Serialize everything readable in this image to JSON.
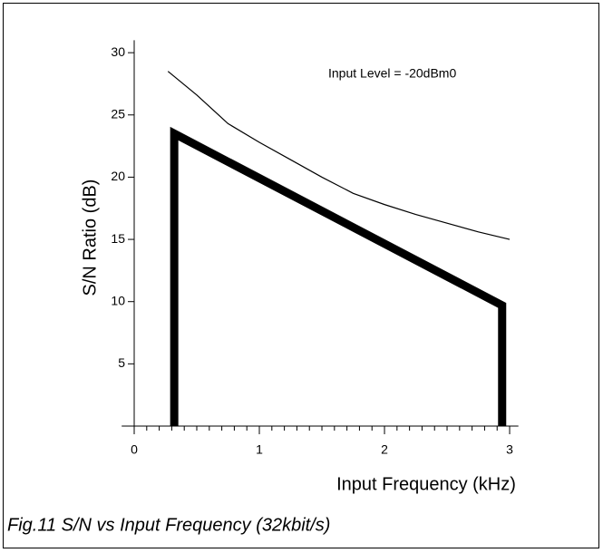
{
  "chart_data": {
    "type": "line",
    "xlabel": "Input Frequency (kHz)",
    "ylabel": "S/N Ratio (dB)",
    "annotation": "Input Level = -20dBm0",
    "caption": "Fig.11 S/N vs Input Frequency (32kbit/s)",
    "xlim": [
      -0.1,
      3.07
    ],
    "ylim": [
      0,
      31
    ],
    "xticks": [
      0,
      1,
      2,
      3
    ],
    "xminor_ticks": [
      0.1,
      0.2,
      0.3,
      0.4,
      0.5,
      0.6,
      0.7,
      0.8,
      0.9,
      1.1,
      1.2,
      1.3,
      1.4,
      1.5,
      1.6,
      1.7,
      1.8,
      1.9,
      2.1,
      2.2,
      2.3,
      2.4,
      2.5,
      2.6,
      2.7,
      2.8,
      2.9
    ],
    "yticks": [
      5,
      10,
      15,
      20,
      25,
      30
    ],
    "series": [
      {
        "color": "#000000",
        "line_width": 1.2,
        "x": [
          0.27,
          0.5,
          0.75,
          1.0,
          1.25,
          1.5,
          1.75,
          2.0,
          2.25,
          2.5,
          2.75,
          3.0
        ],
        "values": [
          28.5,
          26.6,
          24.3,
          22.8,
          21.4,
          20.0,
          18.7,
          17.8,
          17.0,
          16.3,
          15.6,
          15.0
        ]
      },
      {
        "color": "#000000",
        "line_width": 9,
        "x": [
          0.32,
          0.32,
          2.94,
          2.94
        ],
        "values": [
          0,
          23.5,
          9.7,
          0
        ]
      }
    ]
  }
}
